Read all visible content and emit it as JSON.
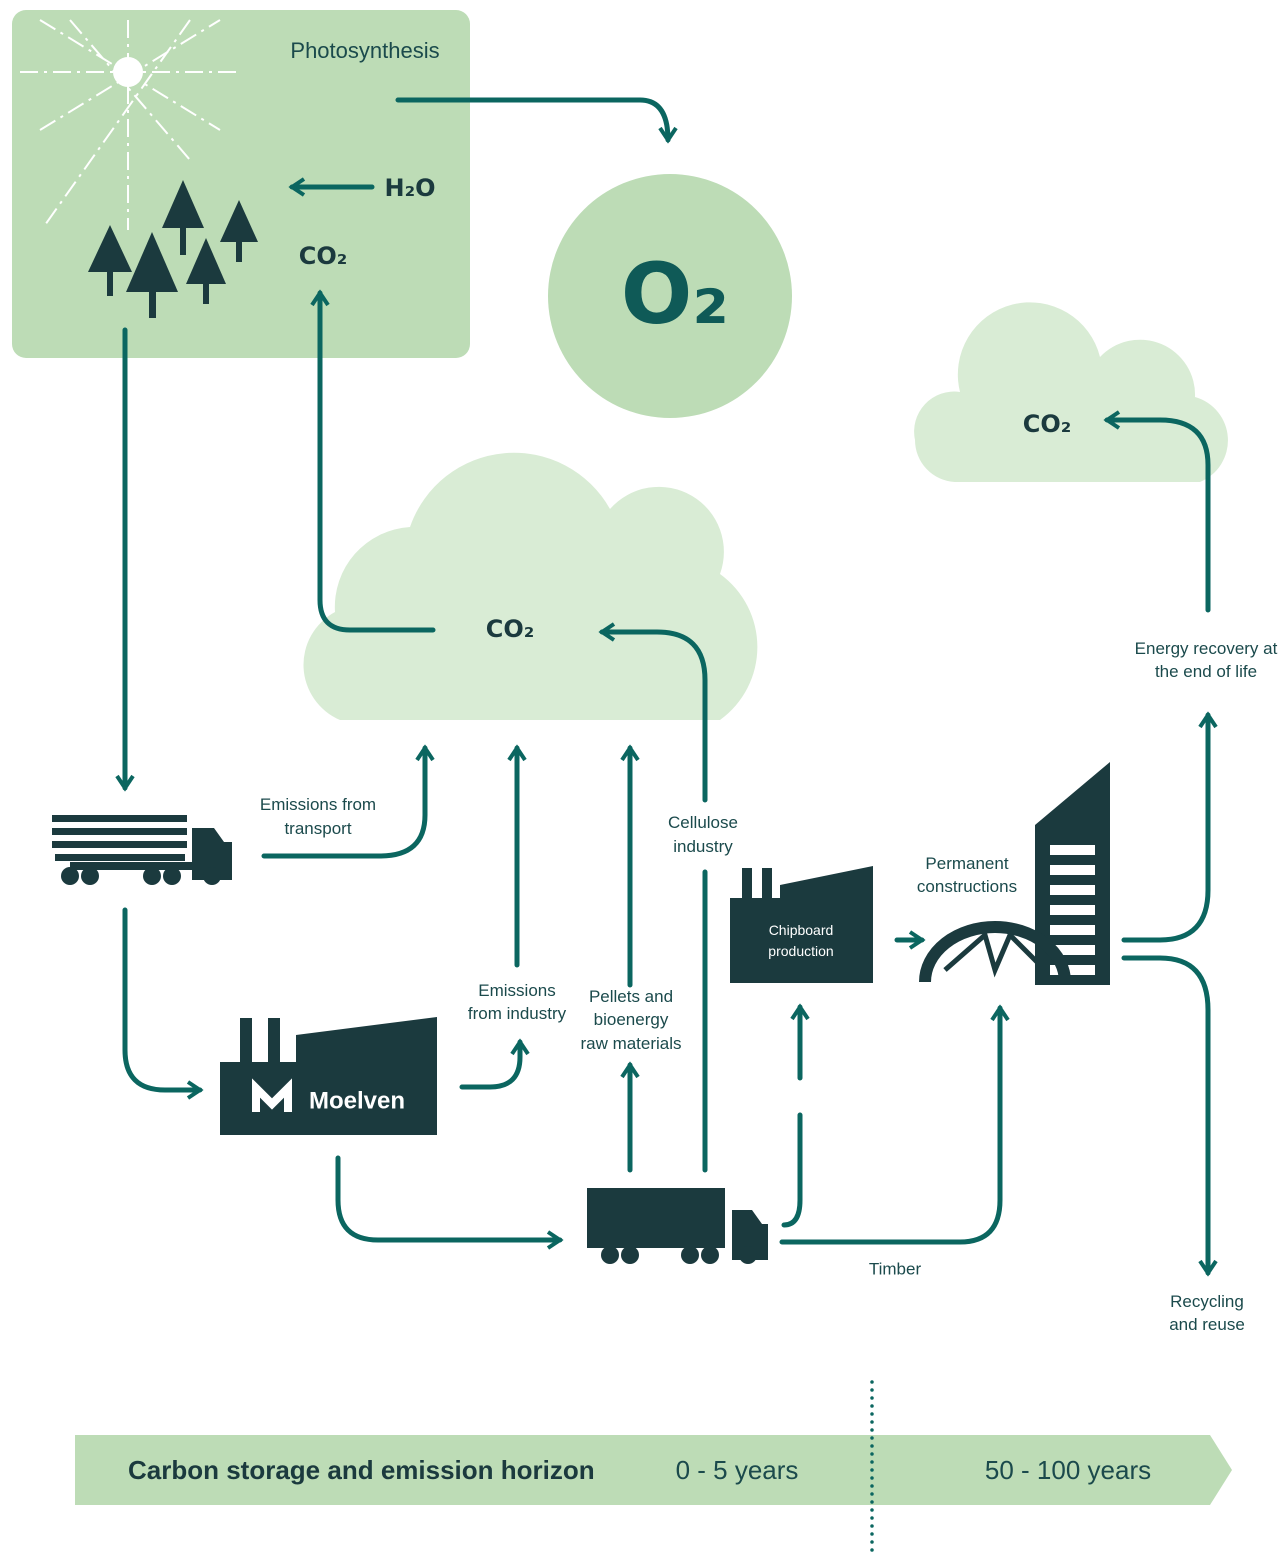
{
  "photosynthesis": {
    "title": "Photosynthesis",
    "h2o": "H₂O",
    "co2": "CO₂"
  },
  "oxygen": "O₂",
  "clouds": {
    "main": "CO₂",
    "right": "CO₂"
  },
  "labels": {
    "emissions_transport": [
      "Emissions from",
      "transport"
    ],
    "cellulose": [
      "Cellulose",
      "industry"
    ],
    "permanent": [
      "Permanent",
      "constructions"
    ],
    "energy_recovery": [
      "Energy recovery at",
      "the end of life"
    ],
    "emissions_industry": [
      "Emissions",
      "from industry"
    ],
    "pellets": [
      "Pellets and",
      "bioenergy",
      "raw materials"
    ],
    "timber": "Timber",
    "recycling": [
      "Recycling",
      "and reuse"
    ]
  },
  "buildings": {
    "moelven": "Moelven",
    "chipboard": [
      "Chipboard",
      "production"
    ]
  },
  "timeline": {
    "title": "Carbon storage and emission horizon",
    "short": "0 - 5 years",
    "long": "50 - 100 years"
  }
}
